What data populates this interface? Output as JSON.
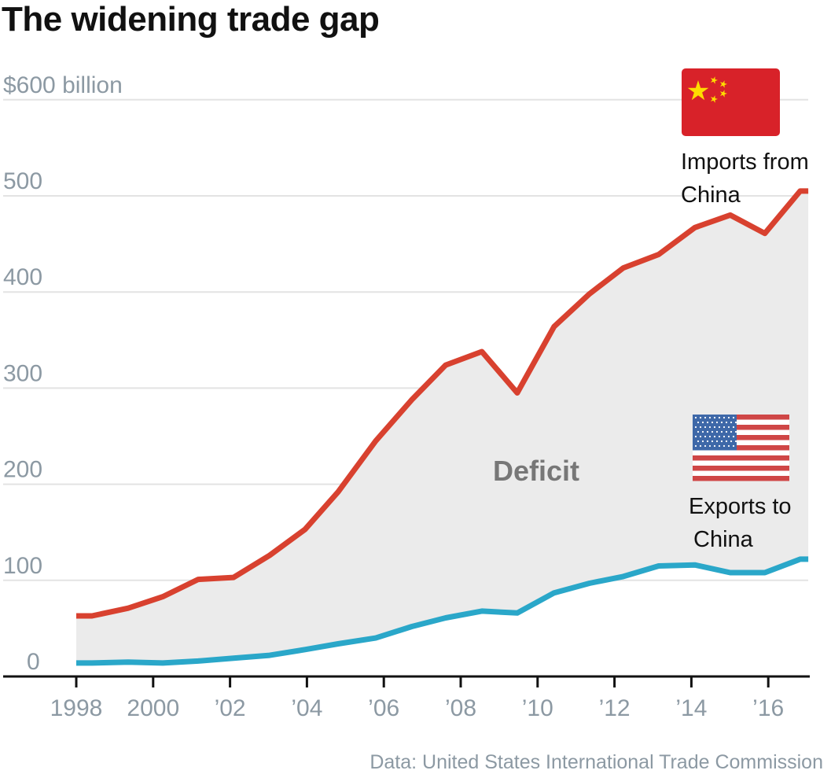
{
  "title": "The widening trade gap",
  "source": "Data: United States International Trade Commission",
  "chart_data": {
    "type": "area",
    "title": "The widening trade gap",
    "ylabel": "$600 billion",
    "ylim": [
      0,
      600
    ],
    "yticks": [
      0,
      100,
      200,
      300,
      400,
      500,
      600
    ],
    "ytick_labels": [
      "0",
      "100",
      "200",
      "300",
      "400",
      "500",
      "$600 billion"
    ],
    "xlim": [
      1998,
      2017
    ],
    "xticks": [
      1998,
      2000,
      2002,
      2004,
      2006,
      2008,
      2010,
      2012,
      2014,
      2016
    ],
    "xtick_labels": [
      "1998",
      "2000",
      "’02",
      "’04",
      "’06",
      "’08",
      "’10",
      "’12",
      "’14",
      "’16"
    ],
    "grid": true,
    "x": [
      1998.0,
      1998.41,
      1999.35,
      2000.25,
      2001.17,
      2002.09,
      2003.03,
      2003.95,
      2004.81,
      2005.79,
      2006.73,
      2007.61,
      2008.55,
      2009.47,
      2010.43,
      2011.35,
      2012.23,
      2013.15,
      2014.09,
      2015.01,
      2015.91,
      2016.83,
      2017.04
    ],
    "series": [
      {
        "name": "Imports from China",
        "color": "#d8412f",
        "values": [
          63,
          63,
          71,
          83,
          101,
          103,
          126,
          153,
          192,
          245,
          288,
          324,
          338,
          295,
          364,
          398,
          425,
          439,
          467,
          480,
          461,
          505,
          505
        ]
      },
      {
        "name": "Exports to China",
        "color": "#2aa7c9",
        "values": [
          14,
          14,
          15,
          14,
          16,
          19,
          22,
          28,
          34,
          40,
          52,
          61,
          68,
          66,
          87,
          97,
          104,
          115,
          116,
          108,
          108,
          122,
          122
        ]
      }
    ],
    "fill_label": "Deficit",
    "fill_color": "#ebebeb",
    "annotations": {
      "imports": [
        "Imports from",
        "China"
      ],
      "exports": [
        "Exports to",
        "China"
      ],
      "imports_icon": "china-flag-icon",
      "exports_icon": "us-flag-icon"
    }
  }
}
